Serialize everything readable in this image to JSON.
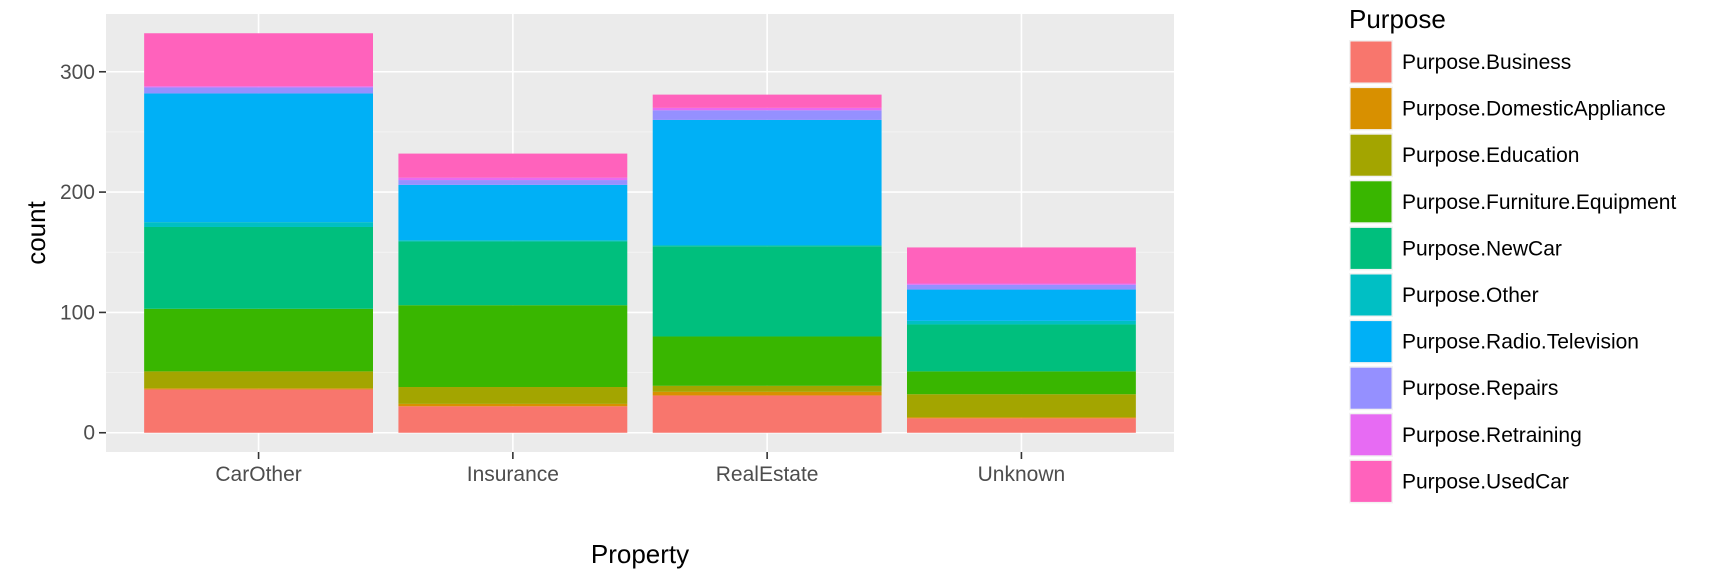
{
  "chart_data": {
    "type": "bar",
    "stacked": true,
    "xlabel": "Property",
    "ylabel": "count",
    "categories": [
      "CarOther",
      "Insurance",
      "RealEstate",
      "Unknown"
    ],
    "yticks": [
      0,
      100,
      200,
      300
    ],
    "ylim": [
      -16,
      348
    ],
    "grid": true,
    "legend": {
      "title": "Purpose",
      "position": "right"
    },
    "series": [
      {
        "name": "Purpose.Business",
        "color": "#F8766D",
        "values": [
          36,
          22,
          31,
          12
        ]
      },
      {
        "name": "Purpose.DomesticAppliance",
        "color": "#D89000",
        "values": [
          1,
          2,
          3,
          1
        ]
      },
      {
        "name": "Purpose.Education",
        "color": "#A3A500",
        "values": [
          14,
          14,
          5,
          19
        ]
      },
      {
        "name": "Purpose.Furniture.Equipment",
        "color": "#39B600",
        "values": [
          52,
          68,
          41,
          19
        ]
      },
      {
        "name": "Purpose.NewCar",
        "color": "#00BF7D",
        "values": [
          68,
          53,
          75,
          39
        ]
      },
      {
        "name": "Purpose.Other",
        "color": "#00BFC4",
        "values": [
          4,
          1,
          1,
          3
        ]
      },
      {
        "name": "Purpose.Radio.Television",
        "color": "#00B0F6",
        "values": [
          107,
          46,
          104,
          26
        ]
      },
      {
        "name": "Purpose.Repairs",
        "color": "#9590FF",
        "values": [
          5,
          4,
          8,
          4
        ]
      },
      {
        "name": "Purpose.Retraining",
        "color": "#E76BF3",
        "values": [
          1,
          2,
          2,
          1
        ]
      },
      {
        "name": "Purpose.UsedCar",
        "color": "#FF62BC",
        "values": [
          44,
          20,
          11,
          30
        ]
      }
    ]
  }
}
